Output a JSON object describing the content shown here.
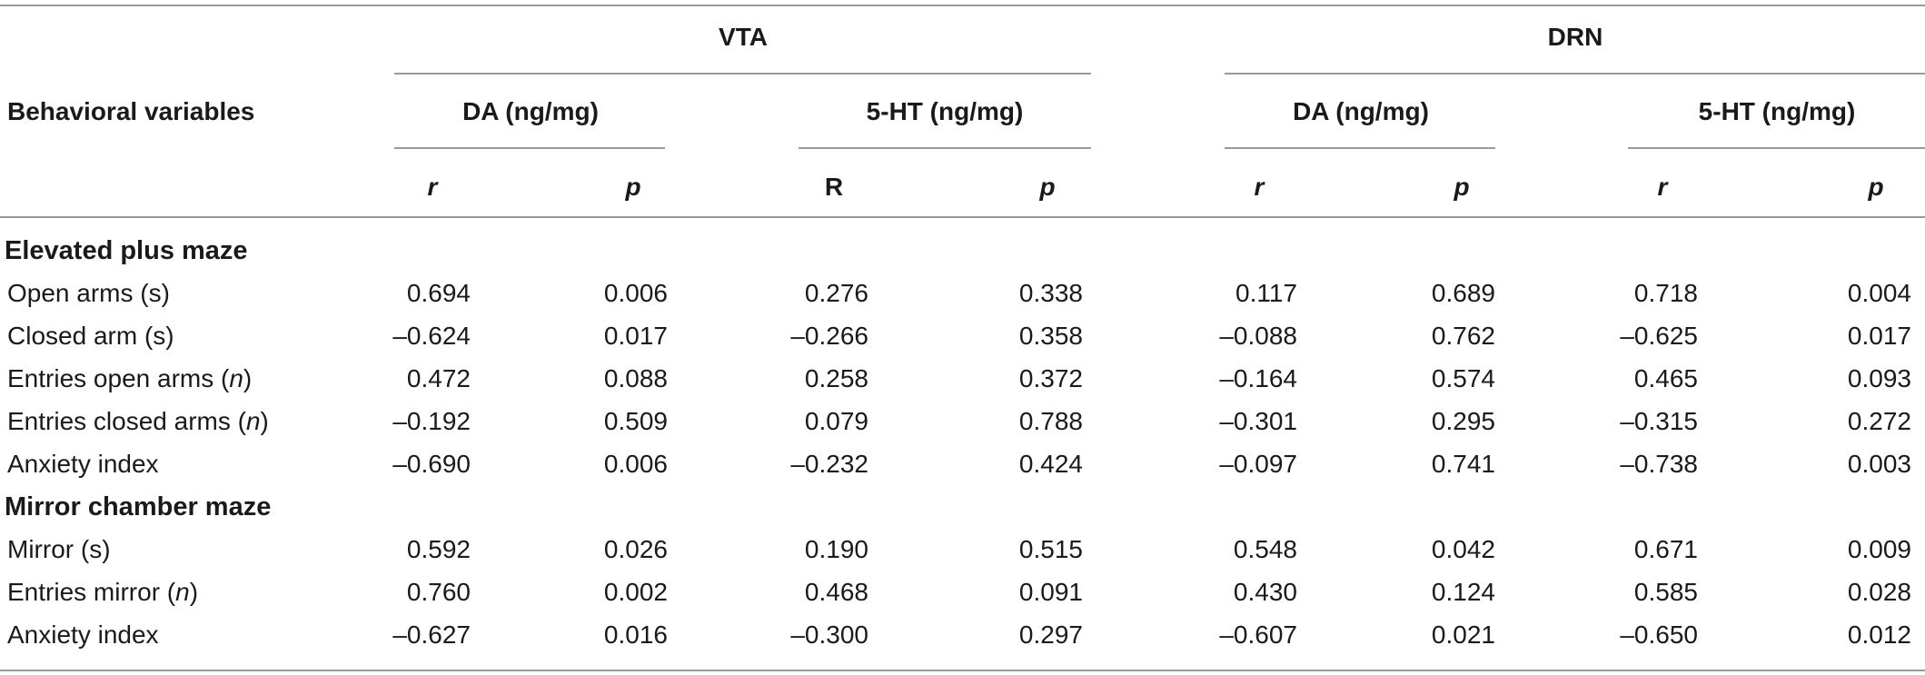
{
  "table": {
    "headers": {
      "row_label": "Behavioral variables",
      "groups": [
        "VTA",
        "DRN"
      ],
      "measures": [
        "DA (ng/mg)",
        "5-HT (ng/mg)",
        "DA (ng/mg)",
        "5-HT (ng/mg)"
      ],
      "stats": [
        "r",
        "p",
        "R",
        "p",
        "r",
        "p",
        "r",
        "p"
      ]
    },
    "sections": [
      {
        "title": "Elevated plus maze",
        "rows": [
          {
            "label": "Open arms (s)",
            "label_main": "Open arms (s)",
            "label_unit": "",
            "values": [
              "0.694",
              "0.006",
              "0.276",
              "0.338",
              "0.117",
              "0.689",
              "0.718",
              "0.004"
            ]
          },
          {
            "label": "Closed arm (s)",
            "label_main": "Closed arm (s)",
            "label_unit": "",
            "values": [
              "–0.624",
              "0.017",
              "–0.266",
              "0.358",
              "–0.088",
              "0.762",
              "–0.625",
              "0.017"
            ]
          },
          {
            "label": "Entries open arms (n)",
            "label_main": "Entries open arms (",
            "label_unit": "n",
            "label_close": ")",
            "values": [
              "0.472",
              "0.088",
              "0.258",
              "0.372",
              "–0.164",
              "0.574",
              "0.465",
              "0.093"
            ]
          },
          {
            "label": "Entries closed arms (n)",
            "label_main": "Entries closed arms (",
            "label_unit": "n",
            "label_close": ")",
            "values": [
              "–0.192",
              "0.509",
              "0.079",
              "0.788",
              "–0.301",
              "0.295",
              "–0.315",
              "0.272"
            ]
          },
          {
            "label": "Anxiety index",
            "label_main": "Anxiety index",
            "label_unit": "",
            "values": [
              "–0.690",
              "0.006",
              "–0.232",
              "0.424",
              "–0.097",
              "0.741",
              "–0.738",
              "0.003"
            ]
          }
        ]
      },
      {
        "title": "Mirror chamber maze",
        "rows": [
          {
            "label": "Mirror (s)",
            "label_main": "Mirror (s)",
            "label_unit": "",
            "values": [
              "0.592",
              "0.026",
              "0.190",
              "0.515",
              "0.548",
              "0.042",
              "0.671",
              "0.009"
            ]
          },
          {
            "label": "Entries mirror (n)",
            "label_main": "Entries mirror (",
            "label_unit": "n",
            "label_close": ")",
            "values": [
              "0.760",
              "0.002",
              "0.468",
              "0.091",
              "0.430",
              "0.124",
              "0.585",
              "0.028"
            ]
          },
          {
            "label": "Anxiety index",
            "label_main": "Anxiety index",
            "label_unit": "",
            "values": [
              "–0.627",
              "0.016",
              "–0.300",
              "0.297",
              "–0.607",
              "0.021",
              "–0.650",
              "0.012"
            ]
          }
        ]
      }
    ]
  }
}
